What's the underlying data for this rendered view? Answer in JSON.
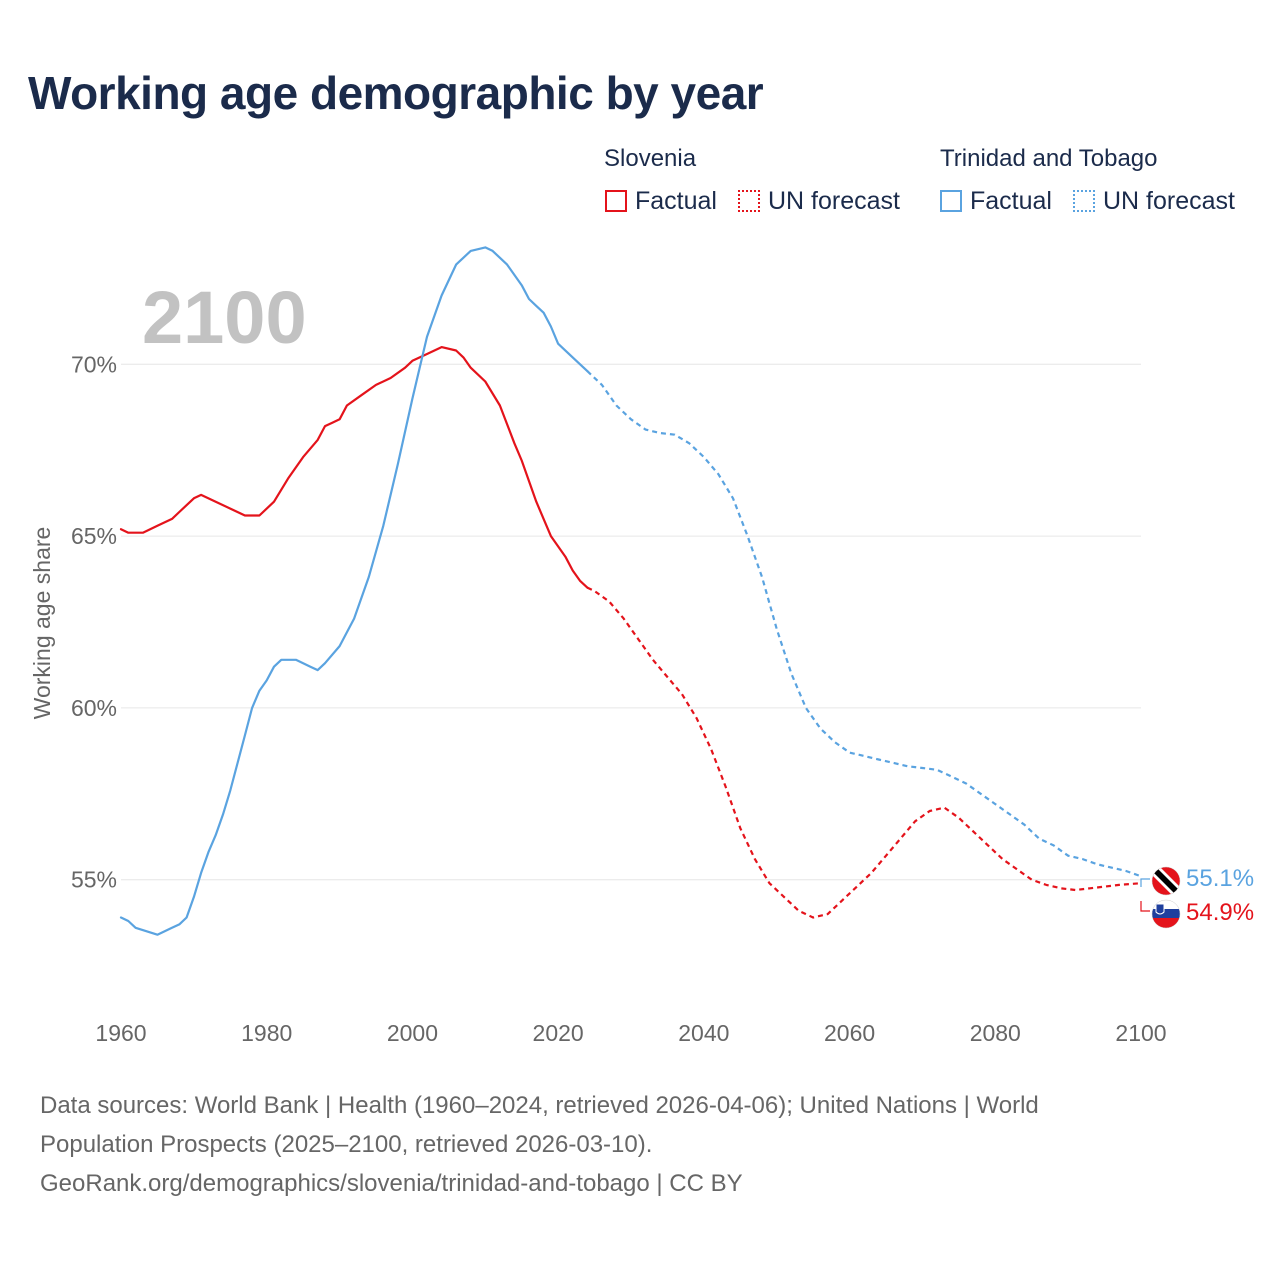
{
  "title": "Working age demographic by year",
  "legend": {
    "groups": [
      {
        "name": "Slovenia",
        "factual_label": "Factual",
        "forecast_label": "UN forecast",
        "color": "#e4131b"
      },
      {
        "name": "Trinidad and Tobago",
        "factual_label": "Factual",
        "forecast_label": "UN forecast",
        "color": "#5aa3e0"
      }
    ]
  },
  "year_display": "2100",
  "source": {
    "line1": "Data sources: World Bank | Health (1960–2024, retrieved 2026-04-06); United Nations | World",
    "line2": "Population Prospects (2025–2100, retrieved 2026-03-10).",
    "line3": "GeoRank.org/demographics/slovenia/trinidad-and-tobago | CC BY"
  },
  "chart_data": {
    "type": "line",
    "title": "Working age demographic by year",
    "ylabel": "Working age share",
    "xlabel": "",
    "xlim": [
      1960,
      2100
    ],
    "ylim": [
      51.5,
      73.5
    ],
    "x_ticks": [
      1960,
      1980,
      2000,
      2020,
      2040,
      2060,
      2080,
      2100
    ],
    "y_ticks": [
      55,
      60,
      65,
      70
    ],
    "y_tick_labels": [
      "55%",
      "60%",
      "65%",
      "70%"
    ],
    "grid": true,
    "forecast_start": 2024,
    "series": [
      {
        "name": "Slovenia",
        "color": "#e4131b",
        "end_label": "54.9%",
        "points": [
          [
            1960,
            65.2
          ],
          [
            1961,
            65.1
          ],
          [
            1963,
            65.1
          ],
          [
            1965,
            65.3
          ],
          [
            1967,
            65.5
          ],
          [
            1968,
            65.7
          ],
          [
            1970,
            66.1
          ],
          [
            1971,
            66.2
          ],
          [
            1973,
            66.0
          ],
          [
            1975,
            65.8
          ],
          [
            1977,
            65.6
          ],
          [
            1979,
            65.6
          ],
          [
            1981,
            66.0
          ],
          [
            1983,
            66.7
          ],
          [
            1985,
            67.3
          ],
          [
            1987,
            67.8
          ],
          [
            1988,
            68.2
          ],
          [
            1989,
            68.3
          ],
          [
            1990,
            68.4
          ],
          [
            1991,
            68.8
          ],
          [
            1993,
            69.1
          ],
          [
            1995,
            69.4
          ],
          [
            1997,
            69.6
          ],
          [
            1999,
            69.9
          ],
          [
            2000,
            70.1
          ],
          [
            2002,
            70.3
          ],
          [
            2004,
            70.5
          ],
          [
            2006,
            70.4
          ],
          [
            2007,
            70.2
          ],
          [
            2008,
            69.9
          ],
          [
            2010,
            69.5
          ],
          [
            2012,
            68.8
          ],
          [
            2014,
            67.7
          ],
          [
            2015,
            67.2
          ],
          [
            2016,
            66.6
          ],
          [
            2017,
            66.0
          ],
          [
            2018,
            65.5
          ],
          [
            2019,
            65.0
          ],
          [
            2021,
            64.4
          ],
          [
            2022,
            64.0
          ],
          [
            2023,
            63.7
          ],
          [
            2024,
            63.5
          ],
          [
            2025,
            63.4
          ],
          [
            2027,
            63.1
          ],
          [
            2029,
            62.6
          ],
          [
            2031,
            62.0
          ],
          [
            2033,
            61.4
          ],
          [
            2035,
            60.9
          ],
          [
            2037,
            60.4
          ],
          [
            2039,
            59.7
          ],
          [
            2041,
            58.8
          ],
          [
            2043,
            57.7
          ],
          [
            2045,
            56.5
          ],
          [
            2047,
            55.6
          ],
          [
            2049,
            54.9
          ],
          [
            2051,
            54.5
          ],
          [
            2053,
            54.1
          ],
          [
            2055,
            53.9
          ],
          [
            2057,
            54.0
          ],
          [
            2059,
            54.4
          ],
          [
            2061,
            54.8
          ],
          [
            2063,
            55.2
          ],
          [
            2065,
            55.7
          ],
          [
            2067,
            56.2
          ],
          [
            2069,
            56.7
          ],
          [
            2071,
            57.0
          ],
          [
            2073,
            57.1
          ],
          [
            2075,
            56.8
          ],
          [
            2077,
            56.4
          ],
          [
            2079,
            56.0
          ],
          [
            2081,
            55.6
          ],
          [
            2083,
            55.3
          ],
          [
            2085,
            55.0
          ],
          [
            2087,
            54.85
          ],
          [
            2089,
            54.75
          ],
          [
            2091,
            54.7
          ],
          [
            2093,
            54.75
          ],
          [
            2095,
            54.8
          ],
          [
            2097,
            54.85
          ],
          [
            2100,
            54.9
          ]
        ]
      },
      {
        "name": "Trinidad and Tobago",
        "color": "#5aa3e0",
        "end_label": "55.1%",
        "points": [
          [
            1960,
            53.9
          ],
          [
            1961,
            53.8
          ],
          [
            1962,
            53.6
          ],
          [
            1965,
            53.4
          ],
          [
            1967,
            53.6
          ],
          [
            1968,
            53.7
          ],
          [
            1969,
            53.9
          ],
          [
            1970,
            54.5
          ],
          [
            1971,
            55.2
          ],
          [
            1972,
            55.8
          ],
          [
            1973,
            56.3
          ],
          [
            1974,
            56.9
          ],
          [
            1975,
            57.6
          ],
          [
            1976,
            58.4
          ],
          [
            1977,
            59.2
          ],
          [
            1978,
            60.0
          ],
          [
            1979,
            60.5
          ],
          [
            1980,
            60.8
          ],
          [
            1981,
            61.2
          ],
          [
            1982,
            61.4
          ],
          [
            1984,
            61.4
          ],
          [
            1986,
            61.2
          ],
          [
            1987,
            61.1
          ],
          [
            1988,
            61.3
          ],
          [
            1990,
            61.8
          ],
          [
            1992,
            62.6
          ],
          [
            1994,
            63.8
          ],
          [
            1996,
            65.3
          ],
          [
            1998,
            67.1
          ],
          [
            2000,
            69.0
          ],
          [
            2002,
            70.8
          ],
          [
            2004,
            72.0
          ],
          [
            2006,
            72.9
          ],
          [
            2008,
            73.3
          ],
          [
            2010,
            73.4
          ],
          [
            2011,
            73.3
          ],
          [
            2013,
            72.9
          ],
          [
            2015,
            72.3
          ],
          [
            2016,
            71.9
          ],
          [
            2017,
            71.7
          ],
          [
            2018,
            71.5
          ],
          [
            2019,
            71.1
          ],
          [
            2020,
            70.6
          ],
          [
            2022,
            70.2
          ],
          [
            2024,
            69.8
          ],
          [
            2026,
            69.4
          ],
          [
            2028,
            68.8
          ],
          [
            2030,
            68.4
          ],
          [
            2032,
            68.1
          ],
          [
            2034,
            68.0
          ],
          [
            2036,
            67.95
          ],
          [
            2038,
            67.7
          ],
          [
            2040,
            67.3
          ],
          [
            2042,
            66.8
          ],
          [
            2044,
            66.1
          ],
          [
            2046,
            65.0
          ],
          [
            2048,
            63.8
          ],
          [
            2050,
            62.3
          ],
          [
            2052,
            61.0
          ],
          [
            2054,
            60.0
          ],
          [
            2056,
            59.4
          ],
          [
            2058,
            59.0
          ],
          [
            2060,
            58.7
          ],
          [
            2062,
            58.6
          ],
          [
            2064,
            58.5
          ],
          [
            2066,
            58.4
          ],
          [
            2068,
            58.3
          ],
          [
            2070,
            58.25
          ],
          [
            2072,
            58.2
          ],
          [
            2074,
            58.0
          ],
          [
            2076,
            57.8
          ],
          [
            2078,
            57.5
          ],
          [
            2080,
            57.2
          ],
          [
            2082,
            56.9
          ],
          [
            2084,
            56.6
          ],
          [
            2086,
            56.2
          ],
          [
            2088,
            56.0
          ],
          [
            2090,
            55.7
          ],
          [
            2092,
            55.6
          ],
          [
            2094,
            55.45
          ],
          [
            2096,
            55.35
          ],
          [
            2098,
            55.25
          ],
          [
            2100,
            55.1
          ]
        ]
      }
    ]
  }
}
